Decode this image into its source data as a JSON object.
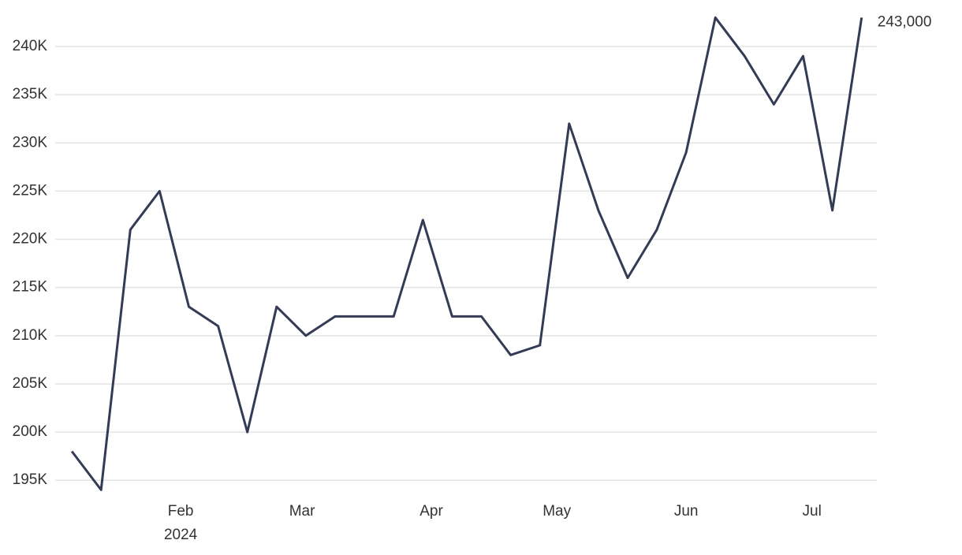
{
  "chart_data": {
    "type": "line",
    "x": [
      0,
      1,
      2,
      3,
      4,
      5,
      6,
      7,
      8,
      9,
      10,
      11,
      12,
      13,
      14,
      15,
      16,
      17,
      18,
      19,
      20,
      21,
      22,
      23,
      24,
      25,
      26,
      27
    ],
    "values": [
      198000,
      194000,
      221000,
      225000,
      213000,
      211000,
      200000,
      213000,
      210000,
      212000,
      212000,
      212000,
      222000,
      212000,
      212000,
      208000,
      209000,
      232000,
      223000,
      216000,
      221000,
      229000,
      243000,
      239000,
      234000,
      239000,
      223000,
      243000
    ],
    "color": "#333b55",
    "last_value_label": "243,000",
    "xlim": [
      -0.57,
      27.52
    ],
    "xticks": [
      {
        "value": 3.72,
        "label": "Feb"
      },
      {
        "value": 7.87,
        "label": "Mar"
      },
      {
        "value": 12.29,
        "label": "Apr"
      },
      {
        "value": 16.58,
        "label": "May"
      },
      {
        "value": 21.0,
        "label": "Jun"
      },
      {
        "value": 25.3,
        "label": "Jul"
      }
    ],
    "year_label": "2024",
    "ylim": [
      193300,
      243600
    ],
    "yticks": [
      {
        "value": 195000,
        "label": "195K"
      },
      {
        "value": 200000,
        "label": "200K"
      },
      {
        "value": 205000,
        "label": "205K"
      },
      {
        "value": 210000,
        "label": "210K"
      },
      {
        "value": 215000,
        "label": "215K"
      },
      {
        "value": 220000,
        "label": "220K"
      },
      {
        "value": 225000,
        "label": "225K"
      },
      {
        "value": 230000,
        "label": "230K"
      },
      {
        "value": 235000,
        "label": "235K"
      },
      {
        "value": 240000,
        "label": "240K"
      }
    ],
    "grid": true
  }
}
